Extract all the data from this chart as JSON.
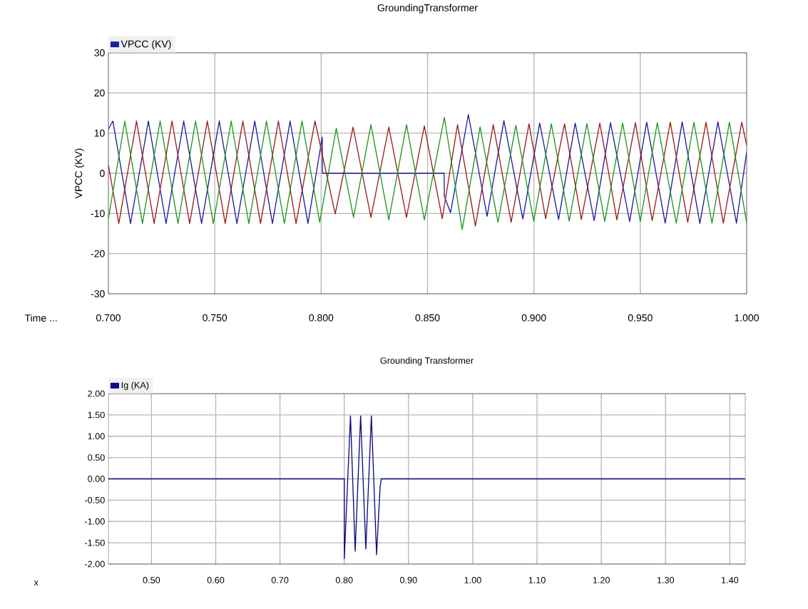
{
  "chart_data": [
    {
      "type": "line",
      "title": "GroundingTransformer",
      "xlabel": "Time ...",
      "ylabel": "VPCC (KV)",
      "xlim": [
        0.7,
        1.0
      ],
      "xticks": [
        {
          "value": 0.7,
          "label": "0.700"
        },
        {
          "value": 0.75,
          "label": "0.750"
        },
        {
          "value": 0.8,
          "label": "0.800"
        },
        {
          "value": 0.85,
          "label": "0.850"
        },
        {
          "value": 0.9,
          "label": "0.900"
        },
        {
          "value": 0.95,
          "label": "0.950"
        },
        {
          "value": 1.0,
          "label": "1.000"
        }
      ],
      "ylim": [
        -30,
        30
      ],
      "yticks": [
        -30,
        -20,
        -10,
        0,
        10,
        20,
        30
      ],
      "grid": true,
      "legend": "top left",
      "series": [
        {
          "name": "VPCC (KV)",
          "color": "#1c1c9c",
          "x": [
            0.7,
            0.7021,
            0.7104,
            0.7188,
            0.7271,
            0.7354,
            0.7438,
            0.7521,
            0.7604,
            0.7688,
            0.7771,
            0.7854,
            0.7938,
            0.8005,
            0.8006,
            0.8578,
            0.8579,
            0.8608,
            0.8692,
            0.878,
            0.8859,
            0.8948,
            0.9027,
            0.9116,
            0.9194,
            0.9283,
            0.936,
            0.945,
            0.953,
            0.9617,
            0.9697,
            0.978,
            0.9865,
            0.9952,
            1.0
          ],
          "values": [
            11,
            13,
            -12.5,
            13,
            -12.5,
            13,
            -12.5,
            13,
            -12.5,
            13,
            -12.5,
            13,
            -12.5,
            9,
            0,
            0,
            -5.7,
            -9.8,
            14.6,
            -10.7,
            13.1,
            -11.4,
            12.5,
            -11.5,
            12.5,
            -11.8,
            12.6,
            -12,
            12.7,
            -12.4,
            12.8,
            -12.5,
            12.8,
            -12.4,
            5.3
          ]
        },
        {
          "color": "#9b1c1c",
          "x": [
            0.7,
            0.7049,
            0.7132,
            0.7215,
            0.7299,
            0.7382,
            0.7465,
            0.7549,
            0.7632,
            0.7715,
            0.7799,
            0.7882,
            0.7971,
            0.8066,
            0.815,
            0.8234,
            0.8318,
            0.8401,
            0.8485,
            0.8569,
            0.8641,
            0.8725,
            0.8809,
            0.8893,
            0.8977,
            0.9055,
            0.9144,
            0.9223,
            0.931,
            0.939,
            0.9477,
            0.9556,
            0.9641,
            0.9723,
            0.9809,
            0.989,
            0.9977,
            1.0
          ],
          "values": [
            2,
            -12.5,
            13,
            -12.5,
            13,
            -12.5,
            13,
            -12.5,
            13,
            -12.5,
            13,
            -12.5,
            13,
            -10.1,
            11.5,
            -11,
            11.5,
            -11,
            11.8,
            -11.3,
            12.1,
            -13.1,
            12.1,
            -12.2,
            12.3,
            -11.3,
            12.3,
            -11.5,
            12.5,
            -11.6,
            12.6,
            -11.8,
            12.7,
            -12.2,
            12.7,
            -12.4,
            12.7,
            7
          ]
        },
        {
          "color": "#1e961e",
          "x": [
            0.7,
            0.7077,
            0.716,
            0.7243,
            0.7327,
            0.741,
            0.7493,
            0.7577,
            0.766,
            0.7743,
            0.7827,
            0.791,
            0.7993,
            0.8071,
            0.8152,
            0.8234,
            0.8318,
            0.8401,
            0.8485,
            0.8579,
            0.8663,
            0.8747,
            0.8831,
            0.8915,
            0.8999,
            0.9082,
            0.9166,
            0.9249,
            0.9333,
            0.9417,
            0.95,
            0.958,
            0.9669,
            0.9752,
            0.9837,
            0.9919,
            1.0
          ],
          "values": [
            -11.3,
            13,
            -12.5,
            13,
            -12.5,
            13,
            -12.5,
            13,
            -12.5,
            13,
            -12.5,
            13,
            -12.2,
            11.2,
            -11,
            12.1,
            -11.6,
            12.1,
            -11.6,
            13.9,
            -14,
            11.5,
            -12.2,
            11.9,
            -11.9,
            12.3,
            -11.9,
            12.4,
            -12,
            12.5,
            -12,
            12.6,
            -12.4,
            12.7,
            -12.4,
            12.7,
            -12.3
          ]
        }
      ]
    },
    {
      "type": "line",
      "title": "Grounding Transformer",
      "xlabel": "x",
      "xlim": [
        0.433,
        1.424
      ],
      "xticks": [
        {
          "value": 0.5,
          "label": "0.50"
        },
        {
          "value": 0.6,
          "label": "0.60"
        },
        {
          "value": 0.7,
          "label": "0.70"
        },
        {
          "value": 0.8,
          "label": "0.80"
        },
        {
          "value": 0.9,
          "label": "0.90"
        },
        {
          "value": 1.0,
          "label": "1.00"
        },
        {
          "value": 1.1,
          "label": "1.10"
        },
        {
          "value": 1.2,
          "label": "1.20"
        },
        {
          "value": 1.3,
          "label": "1.30"
        },
        {
          "value": 1.4,
          "label": "1.40"
        }
      ],
      "ylim": [
        -2,
        2
      ],
      "yticks": [
        {
          "value": -2,
          "label": "-2.00"
        },
        {
          "value": -1.5,
          "label": "-1.50"
        },
        {
          "value": -1,
          "label": "-1.00"
        },
        {
          "value": -0.5,
          "label": "-0.50"
        },
        {
          "value": 0,
          "label": "0.00"
        },
        {
          "value": 0.5,
          "label": "0.50"
        },
        {
          "value": 1,
          "label": "1.00"
        },
        {
          "value": 1.5,
          "label": "1.50"
        },
        {
          "value": 2,
          "label": "2.00"
        }
      ],
      "grid": true,
      "legend": "top left",
      "series": [
        {
          "name": "Ig (KA)",
          "color": "#0a0a80",
          "x": [
            0.433,
            0.8,
            0.8001,
            0.8097,
            0.817,
            0.8255,
            0.8336,
            0.8422,
            0.8503,
            0.8558,
            0.8577,
            1.424
          ],
          "values": [
            0,
            0,
            -1.87,
            1.48,
            -1.7,
            1.48,
            -1.65,
            1.48,
            -1.78,
            -0.19,
            0,
            0
          ]
        }
      ]
    }
  ]
}
